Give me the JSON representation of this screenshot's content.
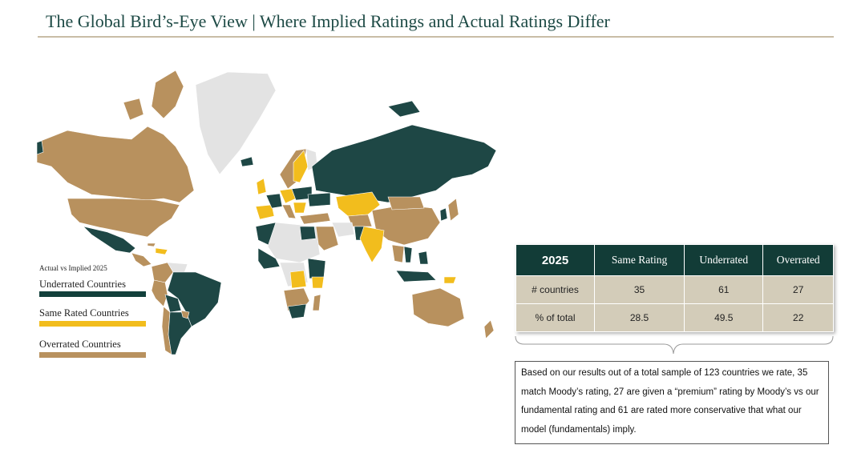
{
  "title": "The Global Bird’s-Eye View | Where Implied Ratings and Actual Ratings Differ",
  "colors": {
    "underrated": "#1e4745",
    "same": "#f2bd1d",
    "overrated": "#b8915e",
    "no_data": "#e3e3e3"
  },
  "legend": {
    "heading": "Actual vs Implied 2025",
    "items": [
      {
        "label": "Underrated Countries",
        "color": "#12403b"
      },
      {
        "label": "Same Rated Countries",
        "color": "#f2bd1d"
      },
      {
        "label": "Overrated Countries",
        "color": "#b8915e"
      }
    ]
  },
  "table": {
    "headers": [
      "2025",
      "Same Rating",
      "Underrated",
      "Overrated"
    ],
    "rows": [
      {
        "label": "# countries",
        "values": [
          "35",
          "61",
          "27"
        ]
      },
      {
        "label": "% of total",
        "values": [
          "28.5",
          "49.5",
          "22"
        ]
      }
    ]
  },
  "note": "Based on our results out of a total sample of 123 countries we rate, 35 match Moody’s rating, 27 are given a “premium” rating by Moody’s vs our fundamental rating and 61 are rated more conservative that what our model (fundamentals) imply."
}
